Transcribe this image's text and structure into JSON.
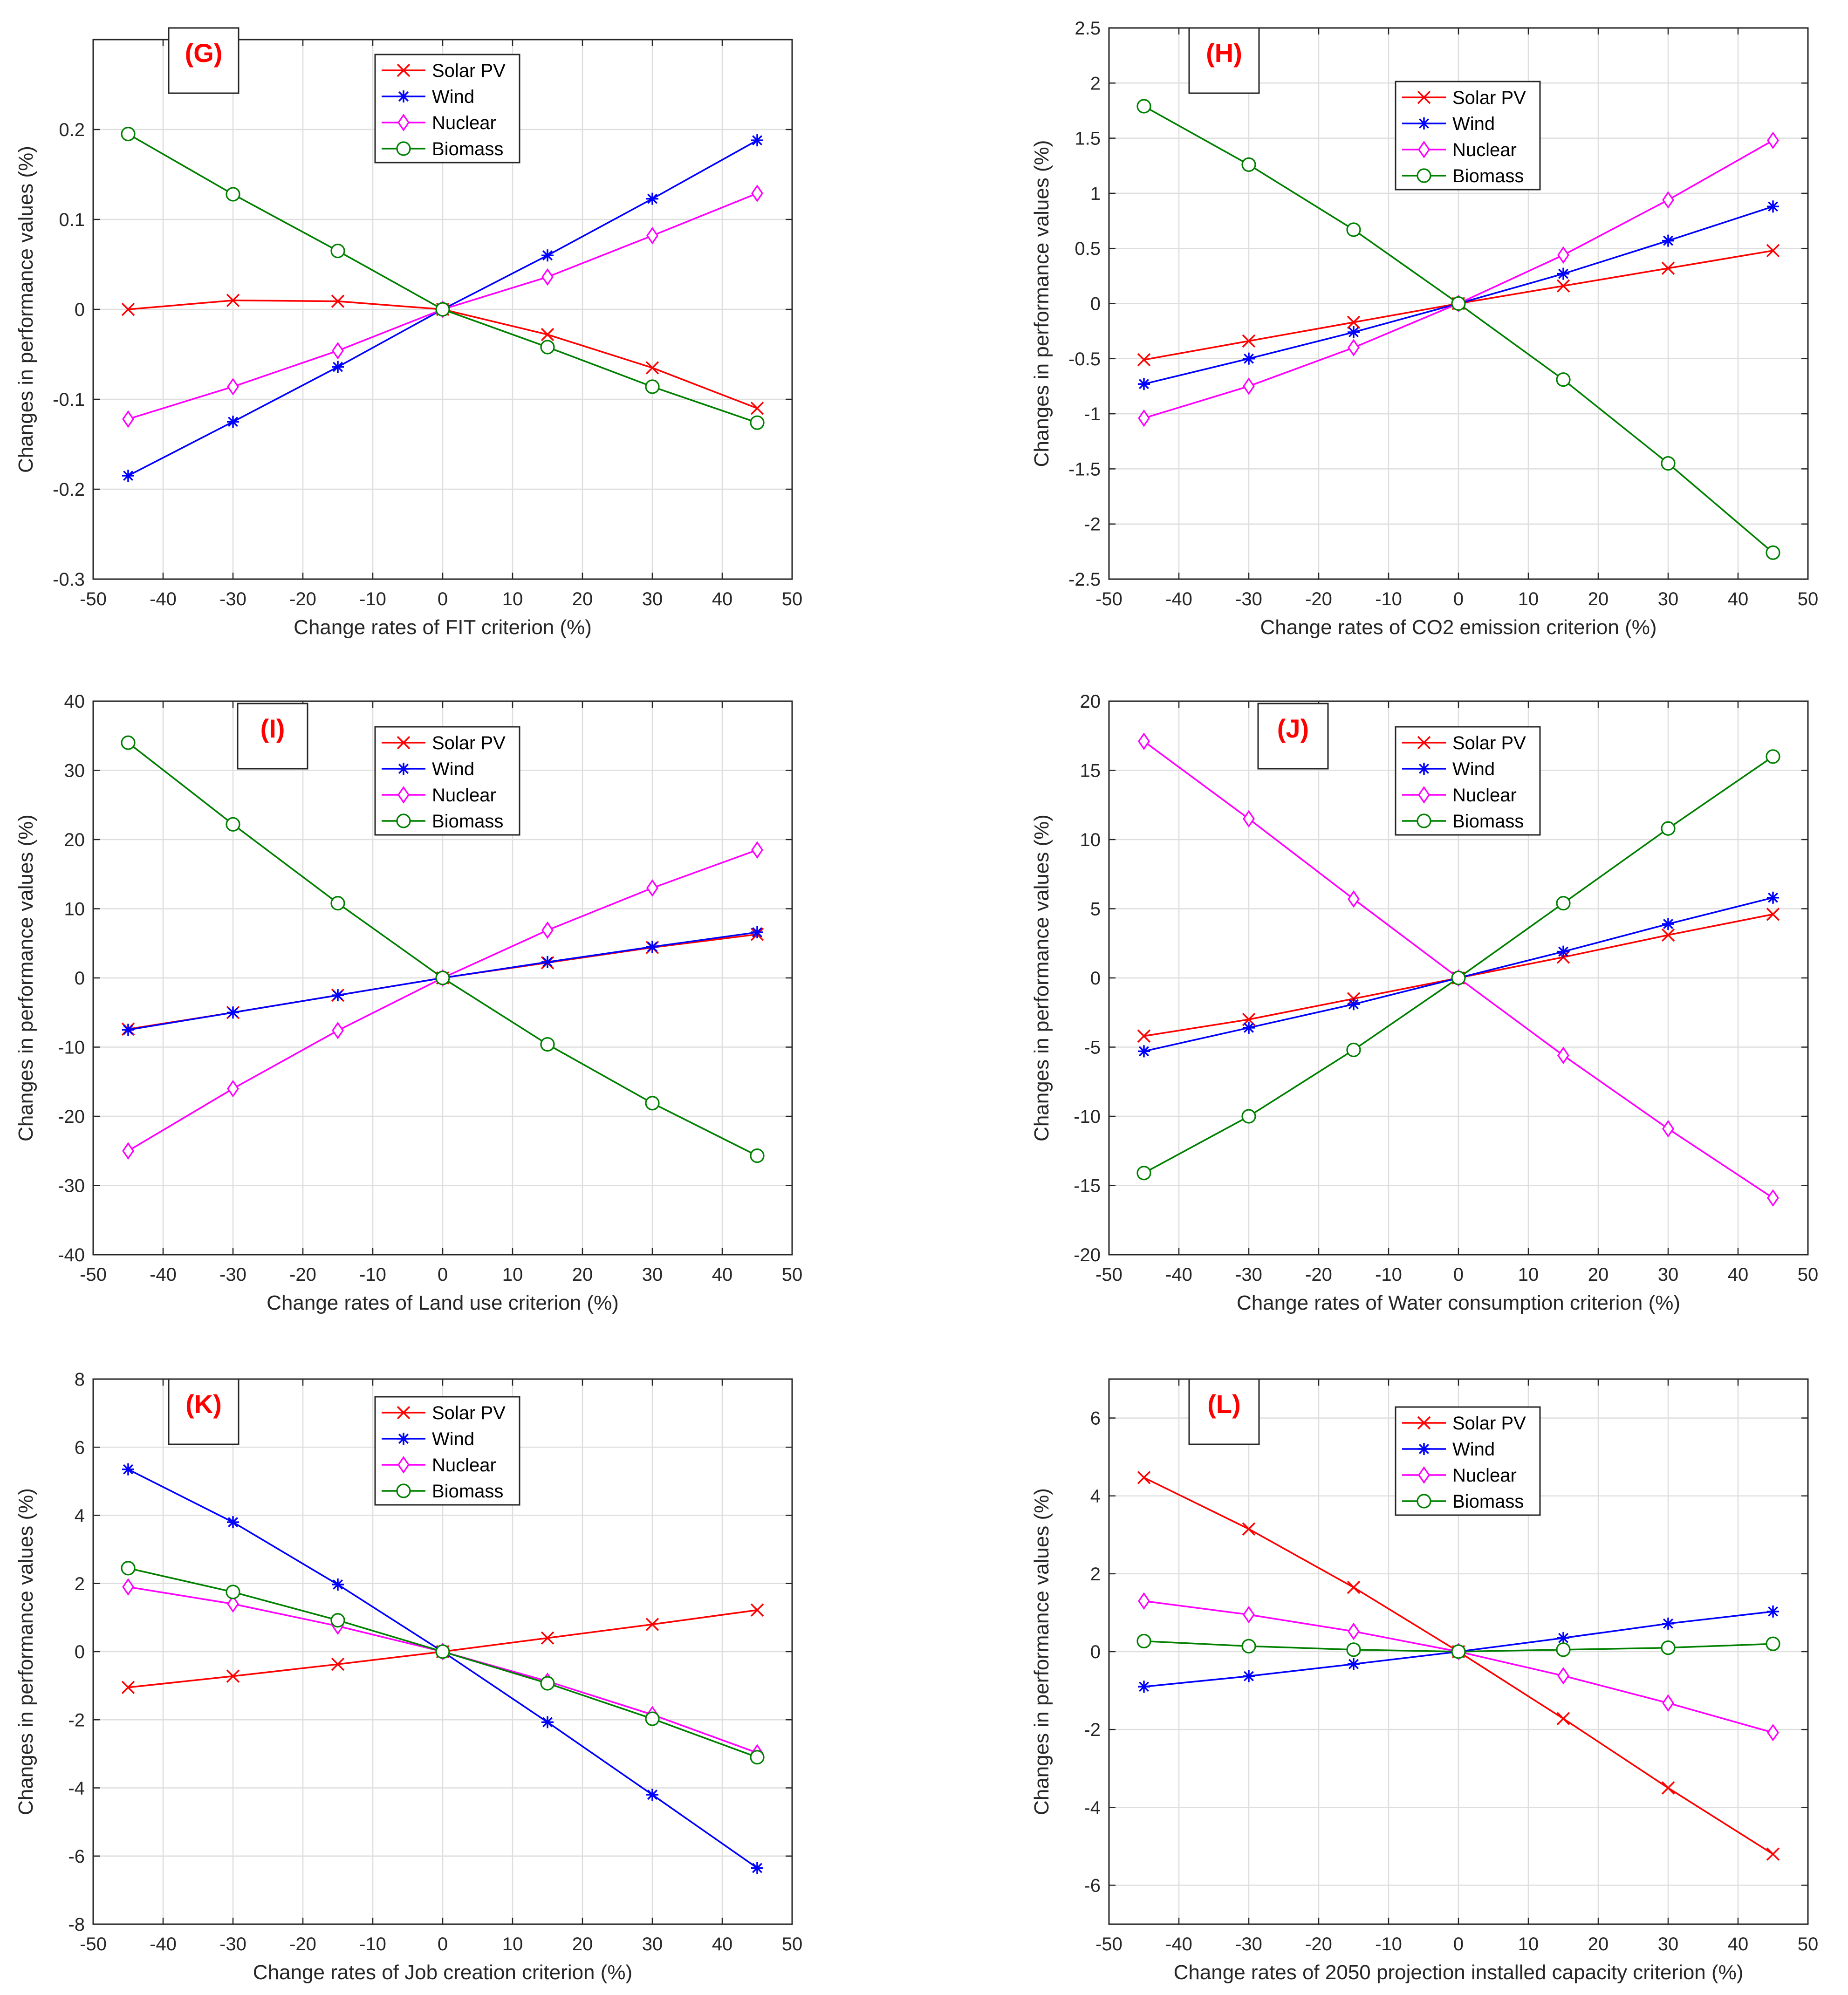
{
  "figure": {
    "series_names": [
      "Solar PV",
      "Wind",
      "Nuclear",
      "Biomass"
    ],
    "series_colors": [
      "#ff0000",
      "#0000ff",
      "#ff00ff",
      "#008000"
    ],
    "series_markers": [
      "x",
      "asterisk",
      "diamond",
      "circle"
    ],
    "panel_label_color": "#ff0000"
  },
  "chart_data": [
    {
      "type": "line",
      "panel_label": "(G)",
      "title": "",
      "xlabel": "Change rates of FIT criterion (%)",
      "ylabel": "Changes in performance values (%)",
      "xlim": [
        -50,
        50
      ],
      "ylim": [
        -0.3,
        0.3
      ],
      "xticks": [
        -50,
        -40,
        -30,
        -20,
        -10,
        0,
        10,
        20,
        30,
        40,
        50
      ],
      "yticks": [
        -0.3,
        -0.2,
        -0.1,
        0,
        0.1,
        0.2
      ],
      "xtick_labels": [
        "-50",
        "-40",
        "-30",
        "-20",
        "-10",
        "0",
        "10",
        "20",
        "30",
        "40",
        "50"
      ],
      "ytick_labels": [
        "-0.3",
        "-0.2",
        "-0.1",
        "0",
        "0.1",
        "0.2"
      ],
      "grid": true,
      "legend": "upper-center",
      "x": [
        -45,
        -30,
        -15,
        0,
        15,
        30,
        45
      ],
      "series": [
        {
          "name": "Solar PV",
          "values": [
            0,
            0.01,
            0.009,
            0,
            -0.028,
            -0.065,
            -0.11
          ]
        },
        {
          "name": "Wind",
          "values": [
            -0.185,
            -0.125,
            -0.064,
            0,
            0.06,
            0.123,
            0.188
          ]
        },
        {
          "name": "Nuclear",
          "values": [
            -0.122,
            -0.086,
            -0.046,
            0,
            0.036,
            0.082,
            0.129
          ]
        },
        {
          "name": "Biomass",
          "values": [
            0.195,
            0.128,
            0.065,
            0,
            -0.042,
            -0.086,
            -0.126
          ]
        }
      ]
    },
    {
      "type": "line",
      "panel_label": "(H)",
      "title": "",
      "xlabel": "Change rates of CO2 emission criterion (%)",
      "ylabel": "Changes in performance values (%)",
      "xlim": [
        -50,
        50
      ],
      "ylim": [
        -2.5,
        2.5
      ],
      "xticks": [
        -50,
        -40,
        -30,
        -20,
        -10,
        0,
        10,
        20,
        30,
        40,
        50
      ],
      "yticks": [
        -2.5,
        -2,
        -1.5,
        -1,
        -0.5,
        0,
        0.5,
        1,
        1.5,
        2,
        2.5
      ],
      "xtick_labels": [
        "-50",
        "-40",
        "-30",
        "-20",
        "-10",
        "0",
        "10",
        "20",
        "30",
        "40",
        "50"
      ],
      "ytick_labels": [
        "-2.5",
        "-2",
        "-1.5",
        "-1",
        "-0.5",
        "0",
        "0.5",
        "1",
        "1.5",
        "2",
        "2.5"
      ],
      "grid": true,
      "legend": "upper-center",
      "x": [
        -45,
        -30,
        -15,
        0,
        15,
        30,
        45
      ],
      "series": [
        {
          "name": "Solar PV",
          "values": [
            -0.51,
            -0.34,
            -0.17,
            0,
            0.16,
            0.32,
            0.48
          ]
        },
        {
          "name": "Wind",
          "values": [
            -0.73,
            -0.5,
            -0.26,
            0,
            0.27,
            0.57,
            0.88
          ]
        },
        {
          "name": "Nuclear",
          "values": [
            -1.04,
            -0.75,
            -0.4,
            0,
            0.44,
            0.94,
            1.48
          ]
        },
        {
          "name": "Biomass",
          "values": [
            1.79,
            1.26,
            0.67,
            0,
            -0.69,
            -1.45,
            -2.26
          ]
        }
      ]
    },
    {
      "type": "line",
      "panel_label": "(I)",
      "title": "",
      "xlabel": "Change rates of Land use criterion (%)",
      "ylabel": "Changes in performance values (%)",
      "xlim": [
        -50,
        50
      ],
      "ylim": [
        -40,
        40
      ],
      "xticks": [
        -50,
        -40,
        -30,
        -20,
        -10,
        0,
        10,
        20,
        30,
        40,
        50
      ],
      "yticks": [
        -40,
        -30,
        -20,
        -10,
        0,
        10,
        20,
        30,
        40
      ],
      "xtick_labels": [
        "-50",
        "-40",
        "-30",
        "-20",
        "-10",
        "0",
        "10",
        "20",
        "30",
        "40",
        "50"
      ],
      "ytick_labels": [
        "-40",
        "-30",
        "-20",
        "-10",
        "0",
        "10",
        "20",
        "30",
        "40"
      ],
      "grid": true,
      "legend": "upper-center",
      "x": [
        -45,
        -30,
        -15,
        0,
        15,
        30,
        45
      ],
      "series": [
        {
          "name": "Solar PV",
          "values": [
            -7.4,
            -5,
            -2.5,
            0,
            2.2,
            4.4,
            6.3
          ]
        },
        {
          "name": "Wind",
          "values": [
            -7.5,
            -5,
            -2.5,
            0,
            2.3,
            4.5,
            6.6
          ]
        },
        {
          "name": "Nuclear",
          "values": [
            -25,
            -16,
            -7.6,
            0,
            6.9,
            13,
            18.5
          ]
        },
        {
          "name": "Biomass",
          "values": [
            34,
            22.2,
            10.8,
            0,
            -9.6,
            -18.1,
            -25.7
          ]
        }
      ]
    },
    {
      "type": "line",
      "panel_label": "(J)",
      "title": "",
      "xlabel": "Change rates of Water consumption criterion (%)",
      "ylabel": "Changes in performance values (%)",
      "xlim": [
        -50,
        50
      ],
      "ylim": [
        -20,
        20
      ],
      "xticks": [
        -50,
        -40,
        -30,
        -20,
        -10,
        0,
        10,
        20,
        30,
        40,
        50
      ],
      "yticks": [
        -20,
        -15,
        -10,
        -5,
        0,
        5,
        10,
        15,
        20
      ],
      "xtick_labels": [
        "-50",
        "-40",
        "-30",
        "-20",
        "-10",
        "0",
        "10",
        "20",
        "30",
        "40",
        "50"
      ],
      "ytick_labels": [
        "-20",
        "-15",
        "-10",
        "-5",
        "0",
        "5",
        "10",
        "15",
        "20"
      ],
      "grid": true,
      "legend": "upper-center",
      "x": [
        -45,
        -30,
        -15,
        0,
        15,
        30,
        45
      ],
      "series": [
        {
          "name": "Solar PV",
          "values": [
            -4.2,
            -3,
            -1.5,
            0,
            1.5,
            3.1,
            4.6
          ]
        },
        {
          "name": "Wind",
          "values": [
            -5.3,
            -3.6,
            -1.9,
            0,
            1.9,
            3.9,
            5.8
          ]
        },
        {
          "name": "Nuclear",
          "values": [
            17.1,
            11.5,
            5.7,
            0,
            -5.6,
            -10.9,
            -15.9
          ]
        },
        {
          "name": "Biomass",
          "values": [
            -14.1,
            -10,
            -5.2,
            0,
            5.4,
            10.8,
            16
          ]
        }
      ]
    },
    {
      "type": "line",
      "panel_label": "(K)",
      "title": "",
      "xlabel": "Change rates of Job creation criterion (%)",
      "ylabel": "Changes in performance values (%)",
      "xlim": [
        -50,
        50
      ],
      "ylim": [
        -8,
        8
      ],
      "xticks": [
        -50,
        -40,
        -30,
        -20,
        -10,
        0,
        10,
        20,
        30,
        40,
        50
      ],
      "yticks": [
        -8,
        -6,
        -4,
        -2,
        0,
        2,
        4,
        6,
        8
      ],
      "xtick_labels": [
        "-50",
        "-40",
        "-30",
        "-20",
        "-10",
        "0",
        "10",
        "20",
        "30",
        "40",
        "50"
      ],
      "ytick_labels": [
        "-8",
        "-6",
        "-4",
        "-2",
        "0",
        "2",
        "4",
        "6",
        "8"
      ],
      "grid": true,
      "legend": "upper-center",
      "x": [
        -45,
        -30,
        -15,
        0,
        15,
        30,
        45
      ],
      "series": [
        {
          "name": "Solar PV",
          "values": [
            -1.05,
            -0.72,
            -0.37,
            0,
            0.4,
            0.8,
            1.22
          ]
        },
        {
          "name": "Wind",
          "values": [
            5.35,
            3.8,
            1.97,
            0,
            -2.07,
            -4.2,
            -6.35
          ]
        },
        {
          "name": "Nuclear",
          "values": [
            1.9,
            1.4,
            0.75,
            0,
            -0.87,
            -1.85,
            -2.97
          ]
        },
        {
          "name": "Biomass",
          "values": [
            2.45,
            1.75,
            0.92,
            0,
            -0.93,
            -1.97,
            -3.1
          ]
        }
      ]
    },
    {
      "type": "line",
      "panel_label": "(L)",
      "title": "",
      "xlabel": "Change rates of 2050 projection installed capacity criterion (%)",
      "ylabel": "Changes in performance values (%)",
      "xlim": [
        -50,
        50
      ],
      "ylim": [
        -7,
        7
      ],
      "xticks": [
        -50,
        -40,
        -30,
        -20,
        -10,
        0,
        10,
        20,
        30,
        40,
        50
      ],
      "yticks": [
        -6,
        -4,
        -2,
        0,
        2,
        4,
        6
      ],
      "xtick_labels": [
        "-50",
        "-40",
        "-30",
        "-20",
        "-10",
        "0",
        "10",
        "20",
        "30",
        "40",
        "50"
      ],
      "ytick_labels": [
        "-6",
        "-4",
        "-2",
        "0",
        "2",
        "4",
        "6"
      ],
      "grid": true,
      "legend": "upper-center",
      "x": [
        -45,
        -30,
        -15,
        0,
        15,
        30,
        45
      ],
      "series": [
        {
          "name": "Solar PV",
          "values": [
            4.47,
            3.15,
            1.65,
            0,
            -1.72,
            -3.5,
            -5.2
          ]
        },
        {
          "name": "Wind",
          "values": [
            -0.9,
            -0.63,
            -0.32,
            0,
            0.35,
            0.72,
            1.03
          ]
        },
        {
          "name": "Nuclear",
          "values": [
            1.3,
            0.95,
            0.52,
            0,
            -0.62,
            -1.32,
            -2.08
          ]
        },
        {
          "name": "Biomass",
          "values": [
            0.27,
            0.14,
            0.05,
            0,
            0.05,
            0.1,
            0.2
          ]
        }
      ]
    }
  ]
}
